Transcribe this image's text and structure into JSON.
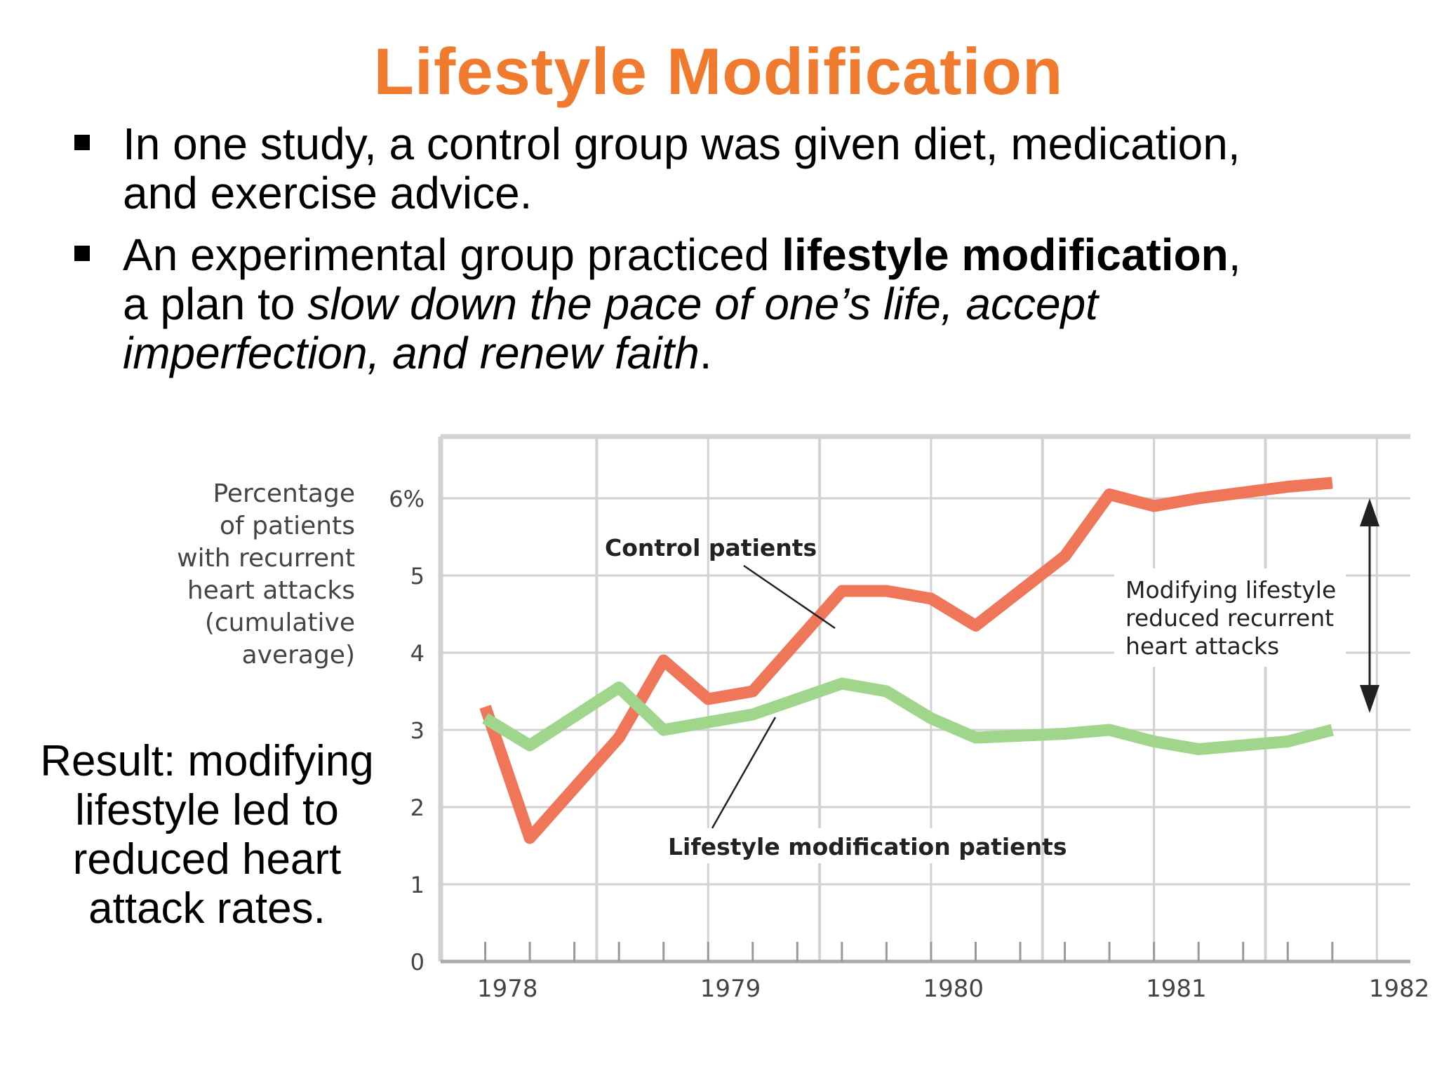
{
  "slide": {
    "title": "Lifestyle Modification",
    "bullet1": "In one study, a control group was given diet, medication, and exercise advice.",
    "bullet2_a": "An experimental group practiced ",
    "bullet2_b": "lifestyle modification",
    "bullet2_c": ", a plan to ",
    "bullet2_d": "slow down the pace of one’s life, accept imperfection, and renew faith",
    "bullet2_e": ".",
    "result": "Result: modifying lifestyle led to reduced heart attack rates."
  },
  "colors": {
    "title": "#f07b2e",
    "control": "#f0765a",
    "lifestyle": "#9fd68c",
    "grid": "#d2d2d2",
    "chart_text": "#444444"
  },
  "chart_data": {
    "type": "line",
    "ylabel": "Percentage of patients with recurrent heart attacks (cumulative average)",
    "ylabel_lines": [
      "Percentage",
      "of patients",
      "with recurrent",
      "heart attacks",
      "(cumulative",
      "average)"
    ],
    "ylim": [
      0,
      6.8
    ],
    "xlim": [
      1977.8,
      1982.15
    ],
    "yticks": [
      {
        "value": 0,
        "label": "0"
      },
      {
        "value": 1,
        "label": "1"
      },
      {
        "value": 2,
        "label": "2"
      },
      {
        "value": 3,
        "label": "3"
      },
      {
        "value": 4,
        "label": "4"
      },
      {
        "value": 5,
        "label": "5"
      },
      {
        "value": 6,
        "label": "6%"
      }
    ],
    "xticks": [
      {
        "value": 1978,
        "label": "1978"
      },
      {
        "value": 1979,
        "label": "1979"
      },
      {
        "value": 1980,
        "label": "1980"
      },
      {
        "value": 1981,
        "label": "1981"
      },
      {
        "value": 1982,
        "label": "1982"
      }
    ],
    "grid": true,
    "series": [
      {
        "name": "Control patients",
        "color": "#f0765a",
        "points": [
          [
            1978.0,
            3.3
          ],
          [
            1978.2,
            1.6
          ],
          [
            1978.6,
            2.9
          ],
          [
            1978.8,
            3.9
          ],
          [
            1979.0,
            3.4
          ],
          [
            1979.2,
            3.5
          ],
          [
            1979.6,
            4.8
          ],
          [
            1979.8,
            4.8
          ],
          [
            1980.0,
            4.7
          ],
          [
            1980.2,
            4.35
          ],
          [
            1980.6,
            5.25
          ],
          [
            1980.8,
            6.05
          ],
          [
            1981.0,
            5.9
          ],
          [
            1981.2,
            6.0
          ],
          [
            1981.6,
            6.15
          ],
          [
            1981.8,
            6.2
          ]
        ]
      },
      {
        "name": "Lifestyle modification patients",
        "color": "#9fd68c",
        "points": [
          [
            1978.0,
            3.15
          ],
          [
            1978.2,
            2.8
          ],
          [
            1978.6,
            3.55
          ],
          [
            1978.8,
            3.0
          ],
          [
            1979.0,
            3.1
          ],
          [
            1979.2,
            3.2
          ],
          [
            1979.6,
            3.6
          ],
          [
            1979.8,
            3.5
          ],
          [
            1980.0,
            3.15
          ],
          [
            1980.2,
            2.9
          ],
          [
            1980.6,
            2.95
          ],
          [
            1980.8,
            3.0
          ],
          [
            1981.0,
            2.85
          ],
          [
            1981.2,
            2.75
          ],
          [
            1981.6,
            2.85
          ],
          [
            1981.8,
            3.0
          ]
        ]
      }
    ],
    "annotations": [
      {
        "text": "Control patients"
      },
      {
        "text": "Lifestyle modification patients"
      },
      {
        "lines": [
          "Modifying lifestyle",
          "reduced recurrent",
          "heart attacks"
        ]
      }
    ]
  }
}
